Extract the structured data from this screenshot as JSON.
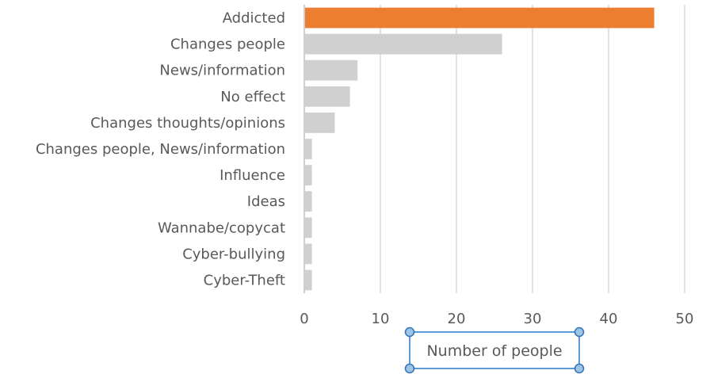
{
  "chart_data": {
    "type": "bar",
    "orientation": "horizontal",
    "categories": [
      "Addicted",
      "Changes people",
      "News/information",
      "No effect",
      "Changes thoughts/opinions",
      "Changes people, News/information",
      "Influence",
      "Ideas",
      "Wannabe/copycat",
      "Cyber-bullying",
      "Cyber-Theft"
    ],
    "values": [
      46,
      26,
      7,
      6,
      4,
      1,
      1,
      1,
      1,
      1,
      1
    ],
    "highlight_index": 0,
    "colors": {
      "highlight": "#ed7d31",
      "default": "#d0d0d0"
    },
    "xlabel": "Number of people",
    "ylabel": "",
    "title": "",
    "xlim": [
      0,
      50
    ],
    "xticks": [
      0,
      10,
      20,
      30,
      40,
      50
    ],
    "grid": true,
    "xlabel_selected": true
  }
}
